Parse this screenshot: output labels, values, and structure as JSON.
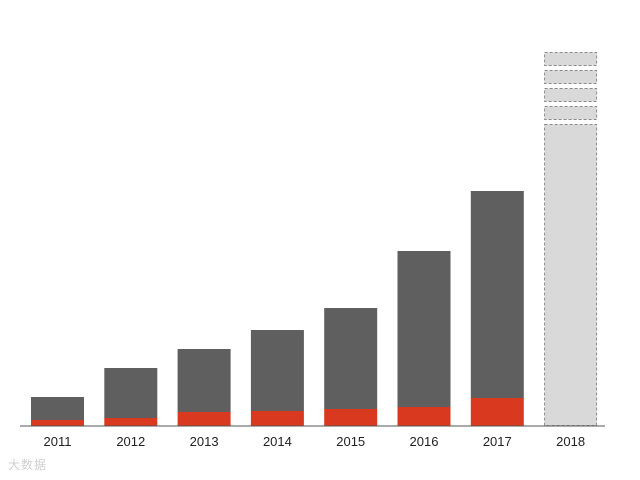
{
  "chart_data": {
    "type": "bar",
    "stacked": true,
    "title": "",
    "xlabel": "",
    "ylabel": "",
    "categories": [
      "2011",
      "2012",
      "2013",
      "2014",
      "2015",
      "2016",
      "2017",
      "2018"
    ],
    "series": [
      {
        "color": "#d9391f",
        "values": [
          6,
          8,
          14,
          15,
          17,
          19,
          28,
          null
        ]
      },
      {
        "color": "#5f5f5f",
        "values": [
          23,
          50,
          63,
          81,
          101,
          156,
          207,
          null
        ]
      }
    ],
    "placeholder": {
      "category": "2018",
      "style": "dashed",
      "color": "#d9d9d9",
      "segments": [
        302,
        18,
        18,
        18,
        18
      ]
    },
    "ylim": [
      0,
      393
    ],
    "grid": false,
    "legend": "none",
    "axis_color": "#555555"
  },
  "watermark": "大数据"
}
